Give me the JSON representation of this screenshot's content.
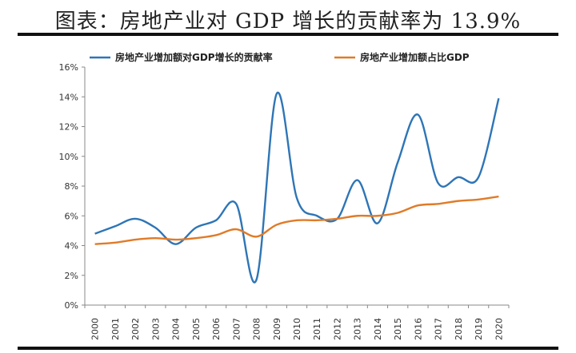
{
  "page_title": "图表：房地产业对 GDP 增长的贡献率为 13.9%",
  "chart_data": {
    "type": "line",
    "title": "图表：房地产业对 GDP 增长的贡献率为 13.9%",
    "x": [
      "2000",
      "2001",
      "2002",
      "2003",
      "2004",
      "2005",
      "2006",
      "2007",
      "2008",
      "2009",
      "2010",
      "2011",
      "2012",
      "2013",
      "2014",
      "2015",
      "2016",
      "2017",
      "2018",
      "2019",
      "2020"
    ],
    "series": [
      {
        "name": "房地产业增加额对GDP增长的贡献率",
        "color": "#2E75B6",
        "values": [
          4.8,
          5.3,
          5.8,
          5.2,
          4.1,
          5.2,
          5.7,
          6.8,
          1.7,
          14.2,
          7.2,
          6.0,
          5.8,
          8.4,
          5.5,
          9.6,
          12.8,
          8.2,
          8.6,
          8.6,
          13.9
        ]
      },
      {
        "name": "房地产业增加额占比GDP",
        "color": "#E07B28",
        "values": [
          4.1,
          4.2,
          4.4,
          4.5,
          4.4,
          4.5,
          4.7,
          5.1,
          4.6,
          5.4,
          5.7,
          5.7,
          5.8,
          6.0,
          6.0,
          6.2,
          6.7,
          6.8,
          7.0,
          7.1,
          7.3
        ]
      }
    ],
    "yticks": [
      "0%",
      "2%",
      "4%",
      "6%",
      "8%",
      "10%",
      "12%",
      "14%",
      "16%"
    ],
    "ylim": [
      0,
      16
    ],
    "xlabel": "",
    "ylabel": "",
    "legend_position": "top",
    "grid": false
  }
}
